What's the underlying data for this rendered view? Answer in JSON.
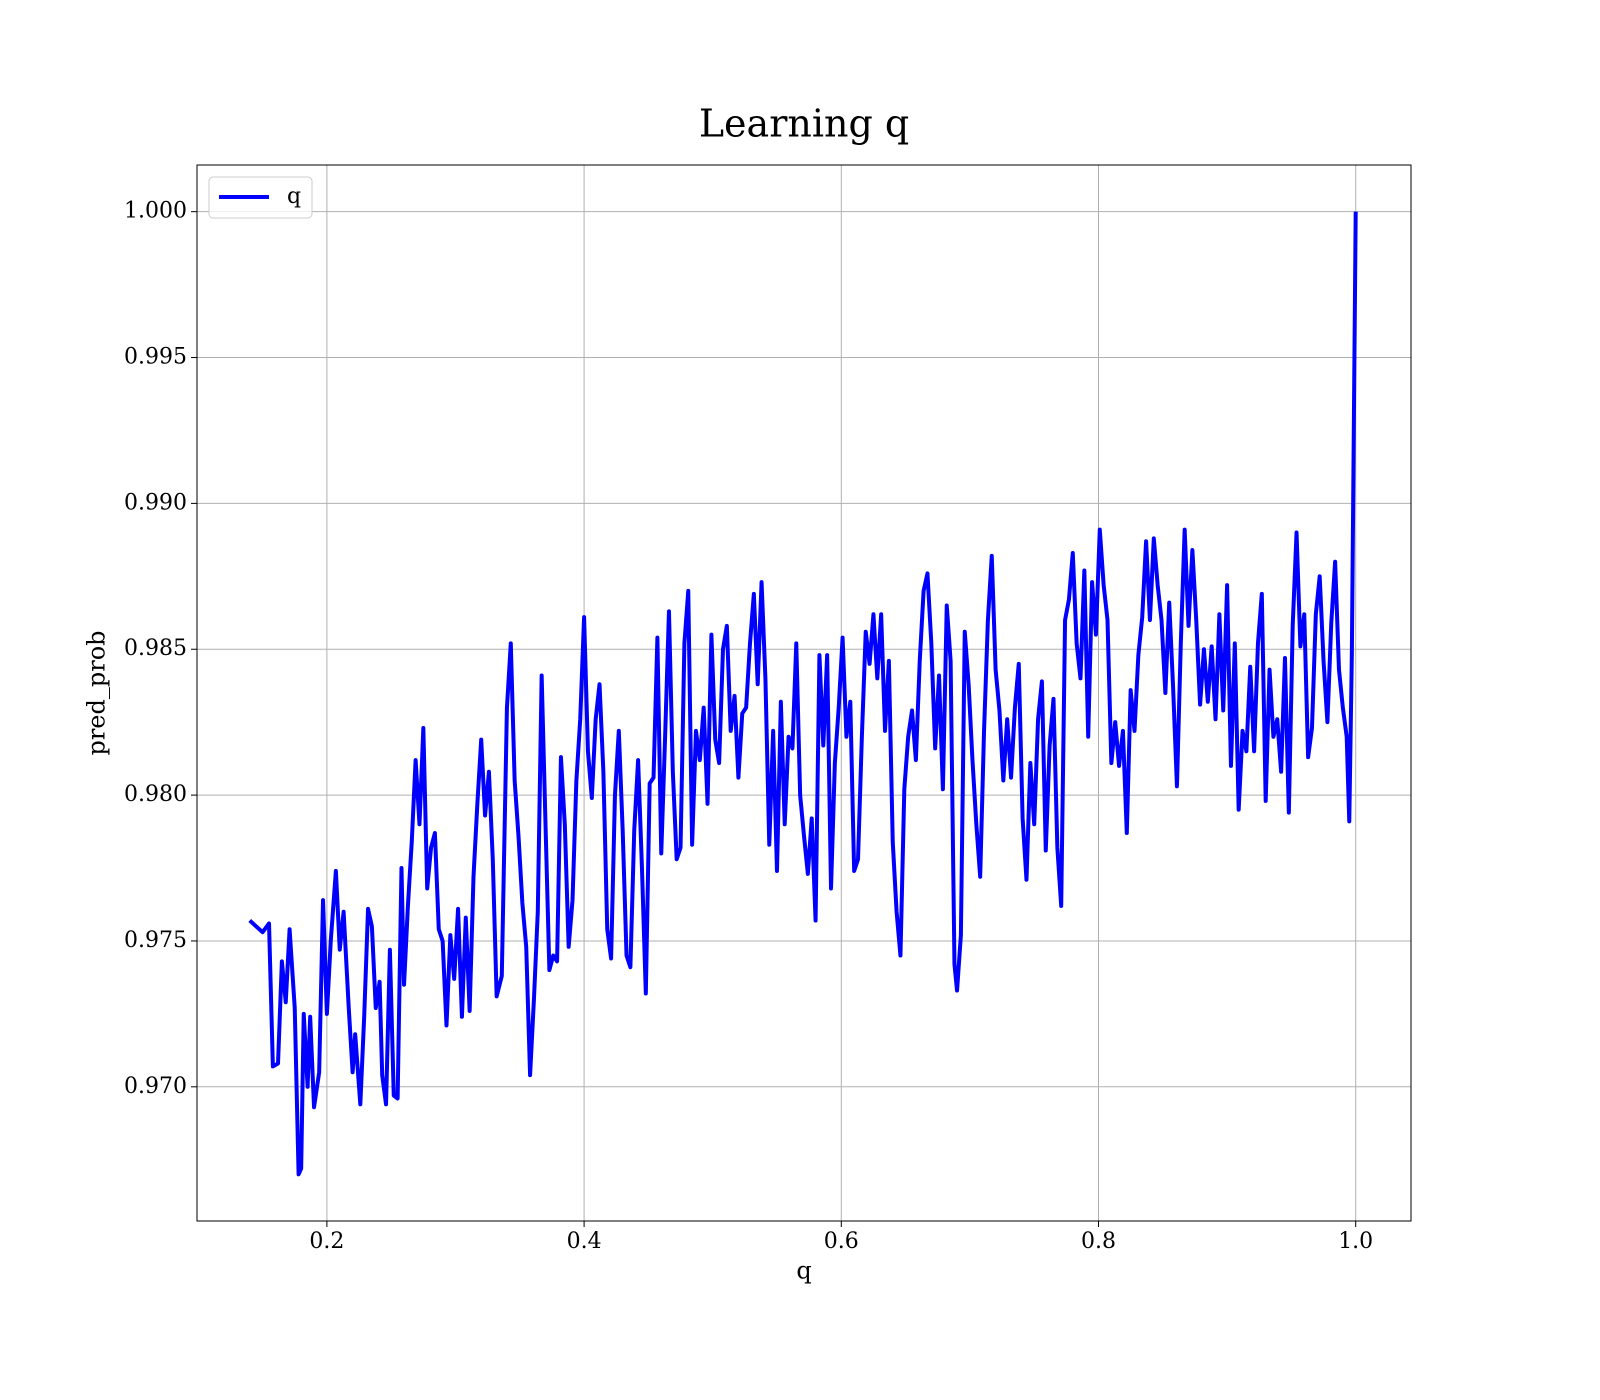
{
  "chart_data": {
    "type": "line",
    "title": "Learning q",
    "x_label": "q",
    "y_label": "pred_prob",
    "x": [
      0.14,
      0.15,
      0.155,
      0.158,
      0.162,
      0.165,
      0.168,
      0.171,
      0.175,
      0.178,
      0.18,
      0.182,
      0.185,
      0.187,
      0.19,
      0.194,
      0.197,
      0.2,
      0.203,
      0.207,
      0.21,
      0.213,
      0.217,
      0.22,
      0.222,
      0.226,
      0.229,
      0.232,
      0.235,
      0.238,
      0.241,
      0.243,
      0.246,
      0.249,
      0.252,
      0.255,
      0.258,
      0.26,
      0.263,
      0.266,
      0.269,
      0.272,
      0.275,
      0.278,
      0.281,
      0.284,
      0.287,
      0.29,
      0.293,
      0.296,
      0.299,
      0.302,
      0.305,
      0.308,
      0.311,
      0.314,
      0.317,
      0.32,
      0.323,
      0.326,
      0.329,
      0.332,
      0.336,
      0.34,
      0.343,
      0.346,
      0.349,
      0.352,
      0.355,
      0.358,
      0.361,
      0.364,
      0.367,
      0.37,
      0.373,
      0.376,
      0.379,
      0.382,
      0.385,
      0.388,
      0.391,
      0.394,
      0.397,
      0.4,
      0.403,
      0.406,
      0.409,
      0.412,
      0.415,
      0.418,
      0.421,
      0.424,
      0.427,
      0.43,
      0.433,
      0.436,
      0.439,
      0.442,
      0.445,
      0.448,
      0.451,
      0.454,
      0.457,
      0.46,
      0.463,
      0.466,
      0.469,
      0.472,
      0.475,
      0.478,
      0.481,
      0.484,
      0.487,
      0.49,
      0.493,
      0.496,
      0.499,
      0.502,
      0.505,
      0.508,
      0.511,
      0.514,
      0.517,
      0.52,
      0.523,
      0.526,
      0.529,
      0.532,
      0.535,
      0.538,
      0.541,
      0.544,
      0.547,
      0.55,
      0.553,
      0.556,
      0.559,
      0.562,
      0.565,
      0.568,
      0.571,
      0.574,
      0.577,
      0.58,
      0.583,
      0.586,
      0.589,
      0.592,
      0.595,
      0.598,
      0.601,
      0.604,
      0.607,
      0.61,
      0.613,
      0.616,
      0.619,
      0.622,
      0.625,
      0.628,
      0.631,
      0.634,
      0.637,
      0.64,
      0.643,
      0.646,
      0.649,
      0.652,
      0.655,
      0.658,
      0.661,
      0.664,
      0.667,
      0.67,
      0.673,
      0.676,
      0.679,
      0.682,
      0.685,
      0.688,
      0.69,
      0.693,
      0.696,
      0.699,
      0.702,
      0.705,
      0.708,
      0.711,
      0.714,
      0.717,
      0.72,
      0.723,
      0.726,
      0.729,
      0.732,
      0.735,
      0.738,
      0.741,
      0.744,
      0.747,
      0.75,
      0.753,
      0.756,
      0.759,
      0.762,
      0.765,
      0.768,
      0.771,
      0.774,
      0.777,
      0.78,
      0.783,
      0.786,
      0.789,
      0.792,
      0.795,
      0.798,
      0.801,
      0.804,
      0.807,
      0.81,
      0.813,
      0.816,
      0.819,
      0.822,
      0.825,
      0.828,
      0.831,
      0.834,
      0.837,
      0.84,
      0.843,
      0.846,
      0.849,
      0.852,
      0.855,
      0.858,
      0.861,
      0.864,
      0.867,
      0.87,
      0.873,
      0.876,
      0.879,
      0.882,
      0.885,
      0.888,
      0.891,
      0.894,
      0.897,
      0.9,
      0.903,
      0.906,
      0.909,
      0.912,
      0.915,
      0.918,
      0.921,
      0.924,
      0.927,
      0.93,
      0.933,
      0.936,
      0.939,
      0.942,
      0.945,
      0.948,
      0.951,
      0.954,
      0.957,
      0.96,
      0.963,
      0.966,
      0.969,
      0.972,
      0.975,
      0.978,
      0.981,
      0.984,
      0.987,
      0.99,
      0.993,
      0.995,
      0.997,
      1.0
    ],
    "series": [
      {
        "name": "q",
        "color": "#0000ff",
        "values": [
          0.9757,
          0.9753,
          0.9756,
          0.9707,
          0.9708,
          0.9743,
          0.9729,
          0.9754,
          0.9727,
          0.967,
          0.9672,
          0.9725,
          0.97,
          0.9724,
          0.9693,
          0.9705,
          0.9764,
          0.9725,
          0.975,
          0.9774,
          0.9747,
          0.976,
          0.9727,
          0.9705,
          0.9718,
          0.9694,
          0.9724,
          0.9761,
          0.9755,
          0.9727,
          0.9736,
          0.9704,
          0.9694,
          0.9747,
          0.9697,
          0.9696,
          0.9775,
          0.9735,
          0.9762,
          0.9784,
          0.9812,
          0.979,
          0.9823,
          0.9768,
          0.9782,
          0.9787,
          0.9754,
          0.975,
          0.9721,
          0.9752,
          0.9737,
          0.9761,
          0.9724,
          0.9758,
          0.9726,
          0.9772,
          0.9797,
          0.9819,
          0.9793,
          0.9808,
          0.9778,
          0.9731,
          0.9738,
          0.983,
          0.9852,
          0.9805,
          0.9786,
          0.9763,
          0.9748,
          0.9704,
          0.973,
          0.976,
          0.9841,
          0.979,
          0.974,
          0.9745,
          0.9743,
          0.9813,
          0.979,
          0.9748,
          0.9764,
          0.9805,
          0.9826,
          0.9861,
          0.9815,
          0.9799,
          0.9826,
          0.9838,
          0.9808,
          0.9754,
          0.9744,
          0.98,
          0.9822,
          0.9788,
          0.9745,
          0.9741,
          0.9788,
          0.9812,
          0.9775,
          0.9732,
          0.9804,
          0.9806,
          0.9854,
          0.978,
          0.982,
          0.9863,
          0.9808,
          0.9778,
          0.9782,
          0.9852,
          0.987,
          0.9783,
          0.9822,
          0.9812,
          0.983,
          0.9797,
          0.9855,
          0.9819,
          0.9811,
          0.985,
          0.9858,
          0.9822,
          0.9834,
          0.9806,
          0.9828,
          0.983,
          0.9852,
          0.9869,
          0.9838,
          0.9873,
          0.984,
          0.9783,
          0.9822,
          0.9774,
          0.9832,
          0.979,
          0.982,
          0.9816,
          0.9852,
          0.98,
          0.9786,
          0.9773,
          0.9792,
          0.9757,
          0.9848,
          0.9817,
          0.9848,
          0.9768,
          0.9811,
          0.983,
          0.9854,
          0.982,
          0.9832,
          0.9774,
          0.9778,
          0.982,
          0.9856,
          0.9845,
          0.9862,
          0.984,
          0.9862,
          0.9822,
          0.9846,
          0.9784,
          0.976,
          0.9745,
          0.9802,
          0.982,
          0.9829,
          0.9812,
          0.9846,
          0.987,
          0.9876,
          0.9852,
          0.9816,
          0.9841,
          0.9802,
          0.9865,
          0.9846,
          0.9742,
          0.9733,
          0.9752,
          0.9856,
          0.9838,
          0.9812,
          0.979,
          0.9772,
          0.9822,
          0.986,
          0.9882,
          0.9843,
          0.9829,
          0.9805,
          0.9826,
          0.9806,
          0.983,
          0.9845,
          0.9792,
          0.9771,
          0.9811,
          0.979,
          0.9826,
          0.9839,
          0.9781,
          0.9817,
          0.9833,
          0.9782,
          0.9762,
          0.986,
          0.9867,
          0.9883,
          0.9852,
          0.984,
          0.9877,
          0.982,
          0.9873,
          0.9855,
          0.9891,
          0.9872,
          0.986,
          0.9811,
          0.9825,
          0.981,
          0.9822,
          0.9787,
          0.9836,
          0.9822,
          0.9848,
          0.9861,
          0.9887,
          0.986,
          0.9888,
          0.9872,
          0.986,
          0.9835,
          0.9866,
          0.9837,
          0.9803,
          0.9852,
          0.9891,
          0.9858,
          0.9884,
          0.986,
          0.9831,
          0.985,
          0.9832,
          0.9851,
          0.9826,
          0.9862,
          0.9829,
          0.9872,
          0.981,
          0.9852,
          0.9795,
          0.9822,
          0.9815,
          0.9844,
          0.9815,
          0.9852,
          0.9869,
          0.9798,
          0.9843,
          0.982,
          0.9826,
          0.9808,
          0.9847,
          0.9794,
          0.9858,
          0.989,
          0.9851,
          0.9862,
          0.9813,
          0.9823,
          0.9862,
          0.9875,
          0.9846,
          0.9825,
          0.9859,
          0.988,
          0.9843,
          0.983,
          0.982,
          0.9791,
          0.9848,
          1.0
        ]
      }
    ],
    "xlim": [
      0.099,
      1.043
    ],
    "ylim": [
      0.9654,
      1.0016
    ],
    "xticks": [
      0.2,
      0.4,
      0.6,
      0.8,
      {
        "value": 1,
        "label": "1.0"
      }
    ],
    "yticks": [
      {
        "value": 0.97,
        "label": "0.970"
      },
      {
        "value": 0.975,
        "label": "0.975"
      },
      {
        "value": 0.98,
        "label": "0.980"
      },
      {
        "value": 0.985,
        "label": "0.985"
      },
      {
        "value": 0.99,
        "label": "0.990"
      },
      {
        "value": 0.995,
        "label": "0.995"
      },
      {
        "value": 1,
        "label": "1.000"
      }
    ],
    "grid": true,
    "legend": "upper-left"
  }
}
